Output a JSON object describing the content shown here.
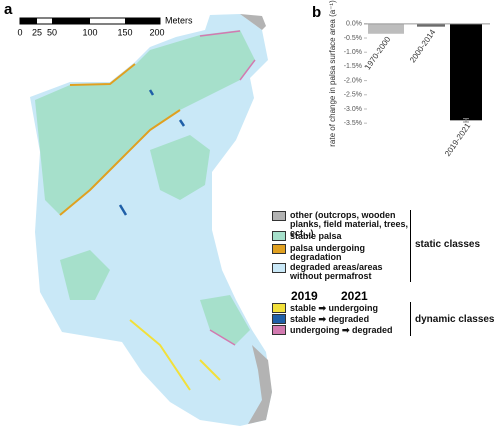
{
  "panel_labels": [
    "a",
    "b"
  ],
  "map": {
    "scale_bar": {
      "labels": [
        "0",
        "25",
        "50",
        "100",
        "150",
        "200"
      ],
      "unit": "Meters"
    },
    "legend": {
      "static": {
        "title": "static classes",
        "items": [
          {
            "label": "other (outcrops, wooden planks, field material, trees, ect...)",
            "color": "#b3b3b3"
          },
          {
            "label": "stable palsa",
            "color": "#a6e0cb"
          },
          {
            "label": "palsa undergoing degradation",
            "color": "#e0a020"
          },
          {
            "label": "degraded areas/areas without permafrost",
            "color": "#c9e8f7"
          }
        ]
      },
      "years": [
        "2019",
        "2021"
      ],
      "dynamic": {
        "title": "dynamic classes",
        "items": [
          {
            "label": "stable ➡ undergoing",
            "color": "#f2e03a"
          },
          {
            "label": "stable ➡ degraded",
            "color": "#1f5fa8"
          },
          {
            "label": "undergoing ➡ degraded",
            "color": "#d27ab0"
          }
        ]
      }
    }
  },
  "chart_data": {
    "type": "bar",
    "y_label": "rate of change in palsa surface area (a⁻¹)",
    "categories": [
      "1970-2000",
      "2000-2014",
      "2019-2021"
    ],
    "values": [
      -0.35,
      -0.1,
      -3.4
    ],
    "errors": [
      null,
      null,
      0.06
    ],
    "colors": [
      "#bdbdbd",
      "#6b6b6b",
      "#000000"
    ],
    "ylim": [
      -3.6,
      0.1
    ],
    "yticks": [
      {
        "value": 0,
        "label": "0.0%"
      },
      {
        "value": -0.5,
        "label": "-0.5%"
      },
      {
        "value": -1,
        "label": "-1.0%"
      },
      {
        "value": -1.5,
        "label": "-1.5%"
      },
      {
        "value": -2,
        "label": "-2.0%"
      },
      {
        "value": -2.5,
        "label": "-2.5%"
      },
      {
        "value": -3,
        "label": "-3.0%"
      },
      {
        "value": -3.5,
        "label": "-3.5%"
      }
    ]
  }
}
